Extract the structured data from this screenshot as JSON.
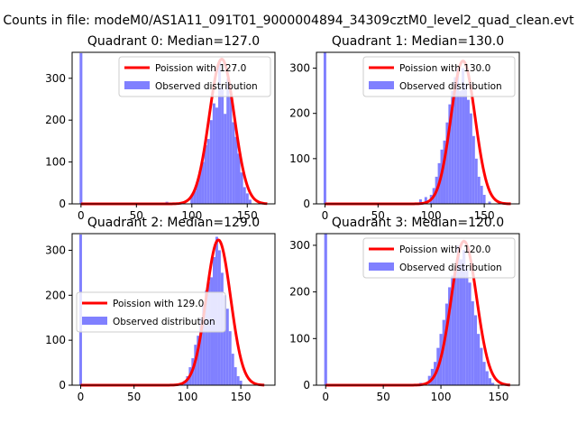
{
  "figure": {
    "suptitle": "Counts in file: modeM0/AS1A11_091T01_9000004894_34309cztM0_level2_quad_clean.evt"
  },
  "colors": {
    "poisson": "#ff0000",
    "observed": "#8080ff",
    "axes": "#000000"
  },
  "chart_data": [
    {
      "type": "bar",
      "title": "Quadrant 0: Median=127.0",
      "xlabel": "",
      "ylabel": "",
      "xlim": [
        -8,
        175
      ],
      "ylim": [
        0,
        362
      ],
      "xticks": [
        0,
        50,
        100,
        150
      ],
      "yticks": [
        0,
        100,
        200,
        300
      ],
      "legend": {
        "position": "top-right",
        "entries": [
          "Poission with 127.0",
          "Observed distribution"
        ]
      },
      "poisson_curve": {
        "label": "Poission with 127.0",
        "mean": 127.0,
        "peak": 346,
        "sigma": 11.3,
        "x_range": [
          0,
          168
        ]
      },
      "observed_histogram": {
        "label": "Observed distribution",
        "bin_width": 2.5,
        "bins": [
          {
            "x": 0,
            "count": 360
          },
          {
            "x": 77.5,
            "count": 5
          },
          {
            "x": 100,
            "count": 20
          },
          {
            "x": 102.5,
            "count": 30
          },
          {
            "x": 105,
            "count": 50
          },
          {
            "x": 107.5,
            "count": 80
          },
          {
            "x": 110,
            "count": 100
          },
          {
            "x": 112.5,
            "count": 140
          },
          {
            "x": 115,
            "count": 155
          },
          {
            "x": 117.5,
            "count": 200
          },
          {
            "x": 120,
            "count": 240
          },
          {
            "x": 122.5,
            "count": 230
          },
          {
            "x": 125,
            "count": 340
          },
          {
            "x": 127.5,
            "count": 280
          },
          {
            "x": 130,
            "count": 215
          },
          {
            "x": 132.5,
            "count": 300
          },
          {
            "x": 135,
            "count": 255
          },
          {
            "x": 137.5,
            "count": 195
          },
          {
            "x": 140,
            "count": 160
          },
          {
            "x": 142.5,
            "count": 120
          },
          {
            "x": 145,
            "count": 75
          },
          {
            "x": 147.5,
            "count": 40
          },
          {
            "x": 150,
            "count": 25
          },
          {
            "x": 152.5,
            "count": 10
          }
        ]
      }
    },
    {
      "type": "bar",
      "title": "Quadrant 1: Median=130.0",
      "xlabel": "",
      "ylabel": "",
      "xlim": [
        -8,
        183
      ],
      "ylim": [
        0,
        335
      ],
      "xticks": [
        0,
        50,
        100,
        150
      ],
      "yticks": [
        0,
        100,
        200,
        300
      ],
      "legend": {
        "position": "top-right",
        "entries": [
          "Poission with 130.0",
          "Observed distribution"
        ]
      },
      "poisson_curve": {
        "label": "Poission with 130.0",
        "mean": 130.0,
        "peak": 316,
        "sigma": 11.4,
        "x_range": [
          0,
          175
        ]
      },
      "observed_histogram": {
        "label": "Observed distribution",
        "bin_width": 2.5,
        "bins": [
          {
            "x": 0,
            "count": 335
          },
          {
            "x": 90,
            "count": 10
          },
          {
            "x": 95,
            "count": 15
          },
          {
            "x": 100,
            "count": 20
          },
          {
            "x": 102.5,
            "count": 35
          },
          {
            "x": 105,
            "count": 60
          },
          {
            "x": 107.5,
            "count": 90
          },
          {
            "x": 110,
            "count": 120
          },
          {
            "x": 112.5,
            "count": 140
          },
          {
            "x": 115,
            "count": 180
          },
          {
            "x": 117.5,
            "count": 220
          },
          {
            "x": 120,
            "count": 250
          },
          {
            "x": 122.5,
            "count": 280
          },
          {
            "x": 125,
            "count": 300
          },
          {
            "x": 127.5,
            "count": 250
          },
          {
            "x": 130,
            "count": 300
          },
          {
            "x": 132.5,
            "count": 265
          },
          {
            "x": 135,
            "count": 230
          },
          {
            "x": 137.5,
            "count": 200
          },
          {
            "x": 140,
            "count": 150
          },
          {
            "x": 142.5,
            "count": 100
          },
          {
            "x": 145,
            "count": 60
          },
          {
            "x": 147.5,
            "count": 40
          },
          {
            "x": 150,
            "count": 20
          },
          {
            "x": 155,
            "count": 5
          }
        ]
      }
    },
    {
      "type": "bar",
      "title": "Quadrant 2: Median=129.0",
      "xlabel": "",
      "ylabel": "",
      "xlim": [
        -8,
        182
      ],
      "ylim": [
        0,
        337
      ],
      "xticks": [
        0,
        50,
        100,
        150
      ],
      "yticks": [
        0,
        100,
        200,
        300
      ],
      "legend": {
        "position": "center-left",
        "entries": [
          "Poission with 129.0",
          "Observed distribution"
        ]
      },
      "poisson_curve": {
        "label": "Poission with 129.0",
        "mean": 129.0,
        "peak": 323,
        "sigma": 11.4,
        "x_range": [
          0,
          172
        ]
      },
      "observed_histogram": {
        "label": "Observed distribution",
        "bin_width": 2.5,
        "bins": [
          {
            "x": 0,
            "count": 335
          },
          {
            "x": 97.5,
            "count": 10
          },
          {
            "x": 100,
            "count": 20
          },
          {
            "x": 102.5,
            "count": 40
          },
          {
            "x": 105,
            "count": 60
          },
          {
            "x": 107.5,
            "count": 90
          },
          {
            "x": 110,
            "count": 110
          },
          {
            "x": 112.5,
            "count": 150
          },
          {
            "x": 115,
            "count": 180
          },
          {
            "x": 117.5,
            "count": 210
          },
          {
            "x": 120,
            "count": 230
          },
          {
            "x": 122.5,
            "count": 240
          },
          {
            "x": 125,
            "count": 285
          },
          {
            "x": 127.5,
            "count": 330
          },
          {
            "x": 130,
            "count": 300
          },
          {
            "x": 132.5,
            "count": 250
          },
          {
            "x": 135,
            "count": 200
          },
          {
            "x": 137.5,
            "count": 170
          },
          {
            "x": 140,
            "count": 120
          },
          {
            "x": 142.5,
            "count": 70
          },
          {
            "x": 145,
            "count": 40
          },
          {
            "x": 147.5,
            "count": 20
          },
          {
            "x": 150,
            "count": 10
          }
        ]
      }
    },
    {
      "type": "bar",
      "title": "Quadrant 3: Median=120.0",
      "xlabel": "",
      "ylabel": "",
      "xlim": [
        -8,
        168
      ],
      "ylim": [
        0,
        325
      ],
      "xticks": [
        0,
        50,
        100,
        150
      ],
      "yticks": [
        0,
        100,
        200,
        300
      ],
      "legend": {
        "position": "top-right",
        "entries": [
          "Poission with 120.0",
          "Observed distribution"
        ]
      },
      "poisson_curve": {
        "label": "Poission with 120.0",
        "mean": 120.0,
        "peak": 309,
        "sigma": 11.0,
        "x_range": [
          0,
          160
        ]
      },
      "observed_histogram": {
        "label": "Observed distribution",
        "bin_width": 2.5,
        "bins": [
          {
            "x": 0,
            "count": 325
          },
          {
            "x": 82.5,
            "count": 5
          },
          {
            "x": 90,
            "count": 20
          },
          {
            "x": 92.5,
            "count": 35
          },
          {
            "x": 95,
            "count": 50
          },
          {
            "x": 97.5,
            "count": 80
          },
          {
            "x": 100,
            "count": 110
          },
          {
            "x": 102.5,
            "count": 140
          },
          {
            "x": 105,
            "count": 175
          },
          {
            "x": 107.5,
            "count": 210
          },
          {
            "x": 110,
            "count": 235
          },
          {
            "x": 112.5,
            "count": 250
          },
          {
            "x": 115,
            "count": 300
          },
          {
            "x": 117.5,
            "count": 270
          },
          {
            "x": 120,
            "count": 290
          },
          {
            "x": 122.5,
            "count": 250
          },
          {
            "x": 125,
            "count": 220
          },
          {
            "x": 127.5,
            "count": 180
          },
          {
            "x": 130,
            "count": 150
          },
          {
            "x": 132.5,
            "count": 110
          },
          {
            "x": 135,
            "count": 80
          },
          {
            "x": 137.5,
            "count": 50
          },
          {
            "x": 140,
            "count": 30
          },
          {
            "x": 142.5,
            "count": 15
          },
          {
            "x": 145,
            "count": 5
          }
        ]
      }
    }
  ]
}
